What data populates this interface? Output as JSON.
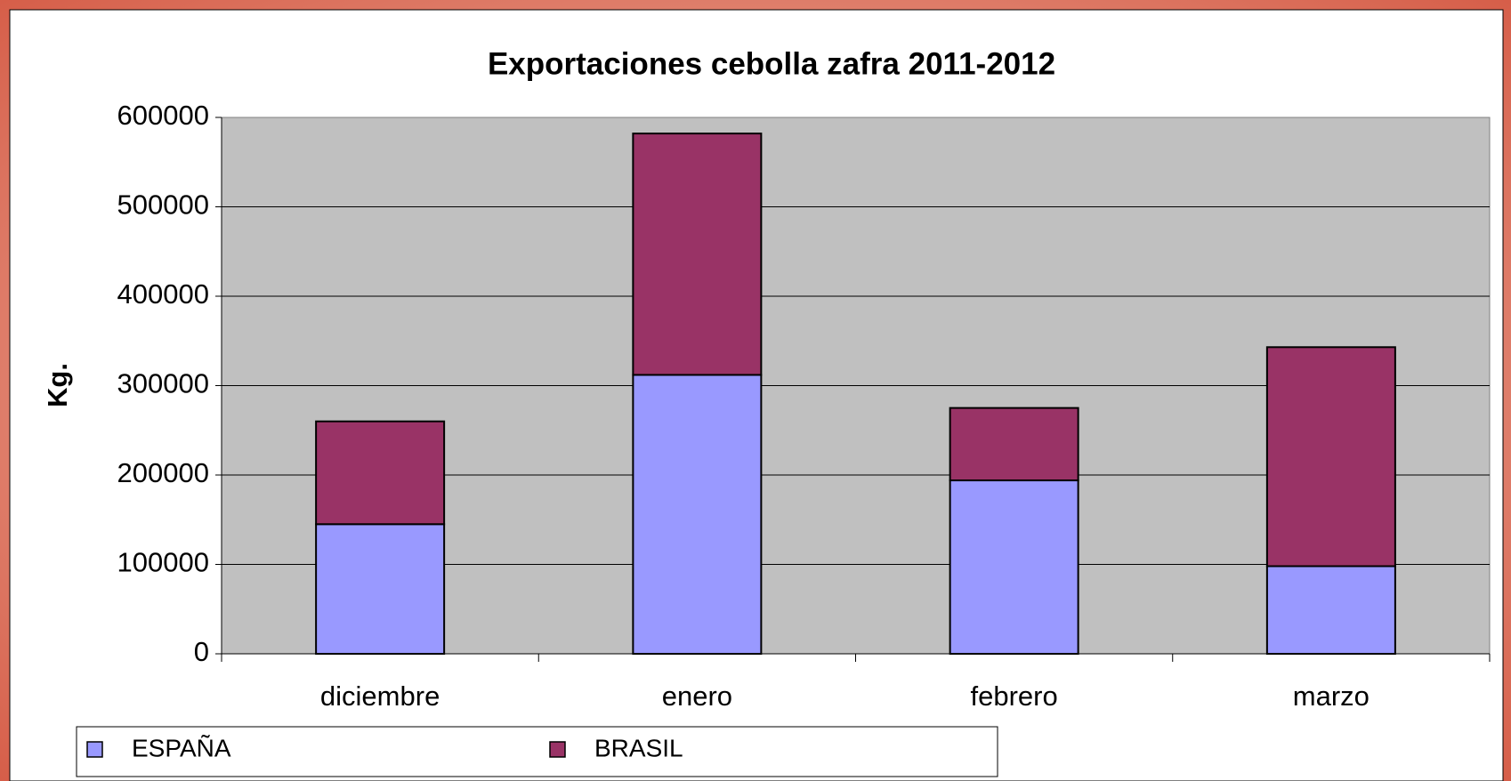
{
  "chart_data": {
    "type": "stacked_bar",
    "title": "Exportaciones cebolla zafra 2011-2012",
    "y_label": "Kg.",
    "categories": [
      "diciembre",
      "enero",
      "febrero",
      "marzo"
    ],
    "series": [
      {
        "name": "ESPAÑA",
        "color": "#9999ff",
        "values": [
          145000,
          312000,
          194000,
          98000
        ]
      },
      {
        "name": "BRASIL",
        "color": "#993366",
        "values": [
          115000,
          270000,
          81000,
          245000
        ]
      }
    ],
    "ylim": [
      0,
      600000
    ],
    "yticks": [
      0,
      100000,
      200000,
      300000,
      400000,
      500000,
      600000
    ],
    "grid": true,
    "legend": "bottom"
  }
}
